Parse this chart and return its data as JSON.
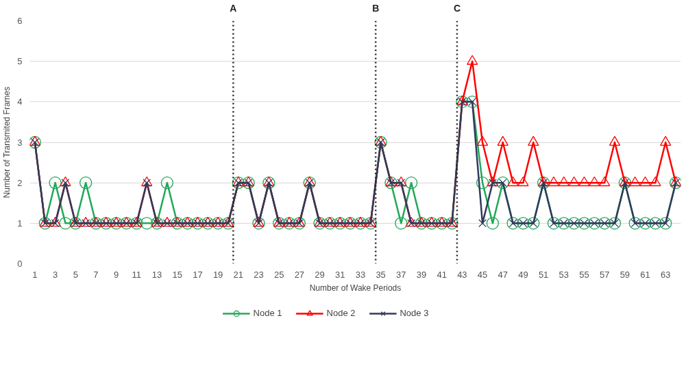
{
  "chart_data": {
    "type": "line",
    "xlabel": "Number of Wake Periods",
    "ylabel": "Number of Transmited Frames",
    "x": [
      1,
      2,
      3,
      4,
      5,
      6,
      7,
      8,
      9,
      10,
      11,
      12,
      13,
      14,
      15,
      16,
      17,
      18,
      19,
      20,
      21,
      22,
      23,
      24,
      25,
      26,
      27,
      28,
      29,
      30,
      31,
      32,
      33,
      34,
      35,
      36,
      37,
      38,
      39,
      40,
      41,
      42,
      43,
      44,
      45,
      46,
      47,
      48,
      49,
      50,
      51,
      52,
      53,
      54,
      55,
      56,
      57,
      58,
      59,
      60,
      61,
      62,
      63,
      64
    ],
    "xlim": [
      0.5,
      64.5
    ],
    "xticks": [
      1,
      3,
      5,
      7,
      9,
      11,
      13,
      15,
      17,
      19,
      21,
      23,
      25,
      27,
      29,
      31,
      33,
      35,
      37,
      39,
      41,
      43,
      45,
      47,
      49,
      51,
      53,
      55,
      57,
      59,
      61,
      63
    ],
    "series": [
      {
        "name": "Node 1",
        "color": "#22a85a",
        "marker": "circle",
        "values": [
          3,
          1,
          2,
          1,
          1,
          2,
          1,
          1,
          1,
          1,
          1,
          1,
          1,
          2,
          1,
          1,
          1,
          1,
          1,
          1,
          2,
          2,
          1,
          2,
          1,
          1,
          1,
          2,
          1,
          1,
          1,
          1,
          1,
          1,
          3,
          2,
          1,
          2,
          1,
          1,
          1,
          1,
          4,
          4,
          2,
          1,
          2,
          1,
          1,
          1,
          2,
          1,
          1,
          1,
          1,
          1,
          1,
          1,
          2,
          1,
          1,
          1,
          1,
          2
        ]
      },
      {
        "name": "Node 2",
        "color": "#ff0000",
        "marker": "triangle",
        "values": [
          3,
          1,
          1,
          2,
          1,
          1,
          1,
          1,
          1,
          1,
          1,
          2,
          1,
          1,
          1,
          1,
          1,
          1,
          1,
          1,
          2,
          2,
          1,
          2,
          1,
          1,
          1,
          2,
          1,
          1,
          1,
          1,
          1,
          1,
          3,
          2,
          2,
          1,
          1,
          1,
          1,
          1,
          4,
          5,
          3,
          2,
          3,
          2,
          2,
          3,
          2,
          2,
          2,
          2,
          2,
          2,
          2,
          3,
          2,
          2,
          2,
          2,
          3,
          2
        ]
      },
      {
        "name": "Node 3",
        "color": "#2f3b5c",
        "marker": "cross",
        "values": [
          3,
          1,
          1,
          2,
          1,
          1,
          1,
          1,
          1,
          1,
          1,
          2,
          1,
          1,
          1,
          1,
          1,
          1,
          1,
          1,
          2,
          2,
          1,
          2,
          1,
          1,
          1,
          2,
          1,
          1,
          1,
          1,
          1,
          1,
          3,
          2,
          2,
          1,
          1,
          1,
          1,
          1,
          4,
          4,
          1,
          2,
          2,
          1,
          1,
          1,
          2,
          1,
          1,
          1,
          1,
          1,
          1,
          1,
          2,
          1,
          1,
          1,
          1,
          2
        ]
      }
    ],
    "ylim": [
      0,
      6
    ],
    "yticks": [
      0,
      1,
      2,
      3,
      4,
      5,
      6
    ],
    "grid": "y",
    "legend": "bottom",
    "ref_lines": [
      {
        "axis": "x",
        "value": 20.5,
        "label": "A",
        "color": "#222222",
        "line_style": "dotted"
      },
      {
        "axis": "x",
        "value": 34.5,
        "label": "B",
        "color": "#222222",
        "line_style": "dotted"
      },
      {
        "axis": "x",
        "value": 42.5,
        "label": "C",
        "color": "#222222",
        "line_style": "dotted"
      }
    ]
  }
}
